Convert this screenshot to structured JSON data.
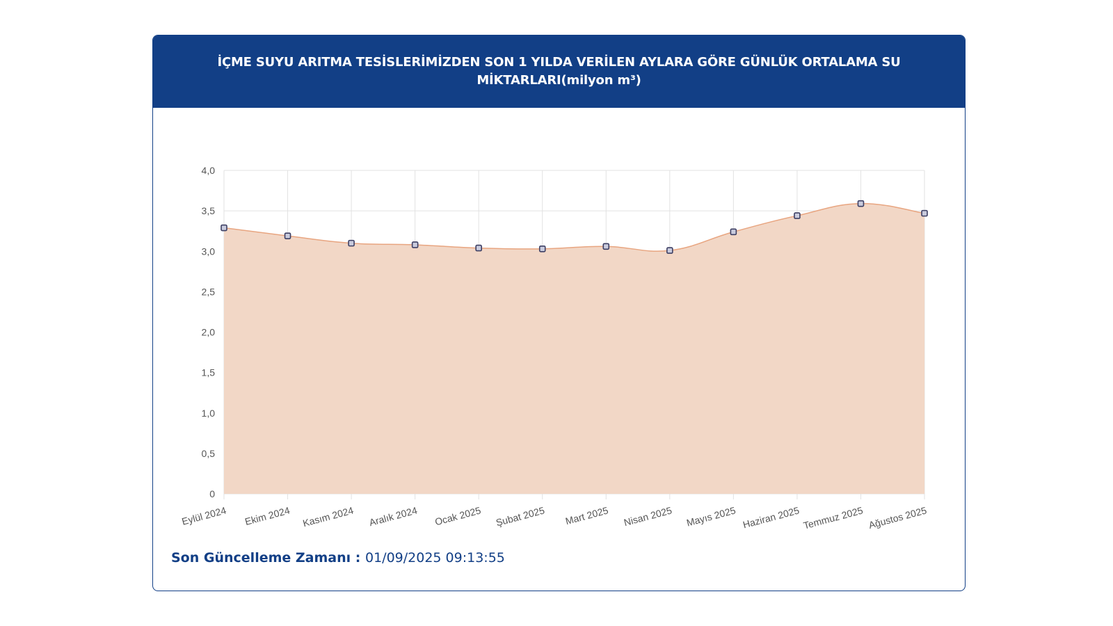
{
  "header": {
    "title": "İÇME SUYU ARITMA TESİSLERİMİZDEN SON 1 YILDA VERİLEN AYLARA GÖRE GÜNLÜK ORTALAMA SU MİKTARLARI(milyon m³)"
  },
  "chart_data": {
    "type": "area",
    "title": "İÇME SUYU ARITMA TESİSLERİMİZDEN SON 1 YILDA VERİLEN AYLARA GÖRE GÜNLÜK ORTALAMA SU MİKTARLARI(milyon m³)",
    "xlabel": "",
    "ylabel": "",
    "categories": [
      "Eylül 2024",
      "Ekim 2024",
      "Kasım 2024",
      "Aralık 2024",
      "Ocak 2025",
      "Şubat 2025",
      "Mart 2025",
      "Nisan 2025",
      "Mayıs 2025",
      "Haziran 2025",
      "Temmuz 2025",
      "Ağustos 2025"
    ],
    "values": [
      3.29,
      3.19,
      3.1,
      3.08,
      3.04,
      3.03,
      3.06,
      3.01,
      3.24,
      3.44,
      3.59,
      3.47
    ],
    "ylim": [
      0,
      4.0
    ],
    "yticks": [
      0,
      0.5,
      1.0,
      1.5,
      2.0,
      2.5,
      3.0,
      3.5,
      4.0
    ],
    "ytick_labels": [
      "0",
      "0,5",
      "1,0",
      "1,5",
      "2,0",
      "2,5",
      "3,0",
      "3,5",
      "4,0"
    ],
    "grid": true,
    "colors": {
      "fill": "#f2d7c6",
      "line": "#e8a580",
      "grid": "#e2e2e2",
      "marker_stroke": "#3d3f63",
      "marker_fill": "#c9cbdd",
      "tick_text": "#555555"
    }
  },
  "footer": {
    "label": "Son Güncelleme Zamanı",
    "separator": " : ",
    "value": "01/09/2025 09:13:55"
  },
  "colors": {
    "brand": "#123f86",
    "header_text": "#ffffff"
  }
}
